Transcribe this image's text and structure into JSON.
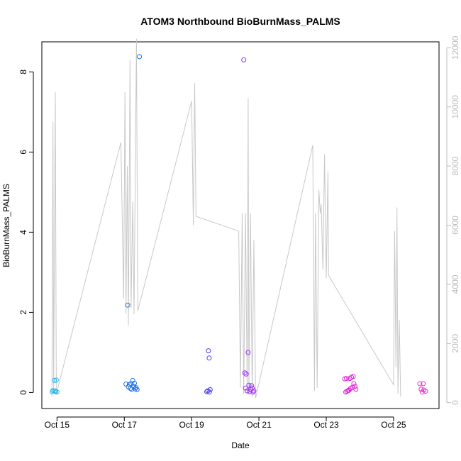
{
  "chart_data": {
    "type": "scatter",
    "title": "ATOM3 Northbound BioBurnMass_PALMS",
    "xlabel": "Date",
    "ylabel": "BioBurnMass_PALMS",
    "x_ticks": [
      "Oct 15",
      "Oct 17",
      "Oct 19",
      "Oct 21",
      "Oct 23",
      "Oct 25"
    ],
    "x_tick_values": [
      14.9,
      16.9,
      18.9,
      20.9,
      22.9,
      24.9
    ],
    "xlim": [
      14.45,
      26.25
    ],
    "ylim": [
      -0.4,
      8.75
    ],
    "y_ticks": [
      0,
      2,
      4,
      6,
      8
    ],
    "y2lim": [
      -200,
      12200
    ],
    "y2_ticks": [
      0,
      2000,
      4000,
      6000,
      8000,
      10000,
      12000
    ],
    "grid": false,
    "legend": "none",
    "line_color": "#c8c8c8",
    "secondary_line": [
      [
        14.75,
        200
      ],
      [
        14.78,
        9500
      ],
      [
        14.8,
        500
      ],
      [
        14.85,
        10500
      ],
      [
        14.88,
        300
      ],
      [
        16.8,
        8800
      ],
      [
        16.88,
        3500
      ],
      [
        16.92,
        10500
      ],
      [
        16.95,
        3000
      ],
      [
        16.99,
        8000
      ],
      [
        17.02,
        2600
      ],
      [
        17.07,
        11600
      ],
      [
        17.1,
        3200
      ],
      [
        17.15,
        6800
      ],
      [
        17.19,
        3000
      ],
      [
        17.26,
        12300
      ],
      [
        17.3,
        3100
      ],
      [
        18.9,
        10200
      ],
      [
        18.95,
        6000
      ],
      [
        18.99,
        10800
      ],
      [
        19.03,
        6300
      ],
      [
        20.3,
        5800
      ],
      [
        20.35,
        500
      ],
      [
        20.4,
        6400
      ],
      [
        20.45,
        300
      ],
      [
        20.5,
        6400
      ],
      [
        20.55,
        400
      ],
      [
        20.58,
        10300
      ],
      [
        20.6,
        300
      ],
      [
        20.65,
        6400
      ],
      [
        20.7,
        200
      ],
      [
        20.75,
        5500
      ],
      [
        20.8,
        150
      ],
      [
        22.5,
        8700
      ],
      [
        22.55,
        400
      ],
      [
        22.58,
        6400
      ],
      [
        22.63,
        500
      ],
      [
        22.68,
        7200
      ],
      [
        22.72,
        6400
      ],
      [
        22.75,
        6700
      ],
      [
        22.8,
        4500
      ],
      [
        22.85,
        8400
      ],
      [
        22.9,
        4200
      ],
      [
        22.95,
        7800
      ],
      [
        22.97,
        4300
      ],
      [
        24.9,
        600
      ],
      [
        24.93,
        5800
      ],
      [
        24.97,
        1200
      ],
      [
        25.0,
        6600
      ],
      [
        25.03,
        300
      ],
      [
        25.07,
        2800
      ],
      [
        25.11,
        200
      ]
    ],
    "series": [
      {
        "color": "#29b6e8",
        "points": [
          [
            14.78,
            0.05
          ],
          [
            14.82,
            0.3
          ],
          [
            14.76,
            0.02
          ],
          [
            14.88,
            0.31
          ],
          [
            14.9,
            0.01
          ],
          [
            14.84,
            0.04
          ],
          [
            14.86,
            0.02
          ]
        ]
      },
      {
        "color": "#1f6fe6",
        "points": [
          [
            17.0,
            2.18
          ],
          [
            17.05,
            0.2
          ],
          [
            16.95,
            0.21
          ],
          [
            17.1,
            0.22
          ],
          [
            17.02,
            0.14
          ],
          [
            17.08,
            0.1
          ],
          [
            17.12,
            0.08
          ],
          [
            17.15,
            0.3
          ],
          [
            17.18,
            0.15
          ],
          [
            17.2,
            0.23
          ],
          [
            17.22,
            0.09
          ],
          [
            17.25,
            0.12
          ],
          [
            17.28,
            0.07
          ],
          [
            17.35,
            8.38
          ]
        ]
      },
      {
        "color": "#4a3cf0",
        "points": [
          [
            19.35,
            0.02
          ],
          [
            19.38,
            0.04
          ],
          [
            19.4,
            1.04
          ],
          [
            19.42,
            0.86
          ],
          [
            19.45,
            0.07
          ],
          [
            19.43,
            0.01
          ]
        ]
      },
      {
        "color": "#9b30ef",
        "points": [
          [
            20.45,
            8.3
          ],
          [
            20.48,
            0.49
          ],
          [
            20.5,
            0.11
          ],
          [
            20.52,
            0.46
          ],
          [
            20.55,
            0.04
          ],
          [
            20.58,
            1.0
          ],
          [
            20.6,
            0.18
          ],
          [
            20.62,
            0.02
          ],
          [
            20.65,
            0.07
          ],
          [
            20.68,
            0.17
          ],
          [
            20.7,
            0.11
          ],
          [
            20.72,
            0.01
          ],
          [
            20.75,
            0.04
          ]
        ]
      },
      {
        "color": "#e020d8",
        "points": [
          [
            23.45,
            0.34
          ],
          [
            23.48,
            0.01
          ],
          [
            23.5,
            0.35
          ],
          [
            23.52,
            0.03
          ],
          [
            23.55,
            0.05
          ],
          [
            23.58,
            0.06
          ],
          [
            23.6,
            0.35
          ],
          [
            23.62,
            0.1
          ],
          [
            23.65,
            0.38
          ],
          [
            23.68,
            0.13
          ],
          [
            23.7,
            0.4
          ],
          [
            23.72,
            0.22
          ],
          [
            23.75,
            0.15
          ],
          [
            23.78,
            0.08
          ]
        ]
      },
      {
        "color": "#f028d8",
        "points": [
          [
            25.68,
            0.22
          ],
          [
            25.72,
            0.08
          ],
          [
            25.75,
            0.01
          ],
          [
            25.78,
            0.22
          ],
          [
            25.8,
            0.06
          ],
          [
            25.85,
            0.03
          ]
        ]
      }
    ]
  }
}
